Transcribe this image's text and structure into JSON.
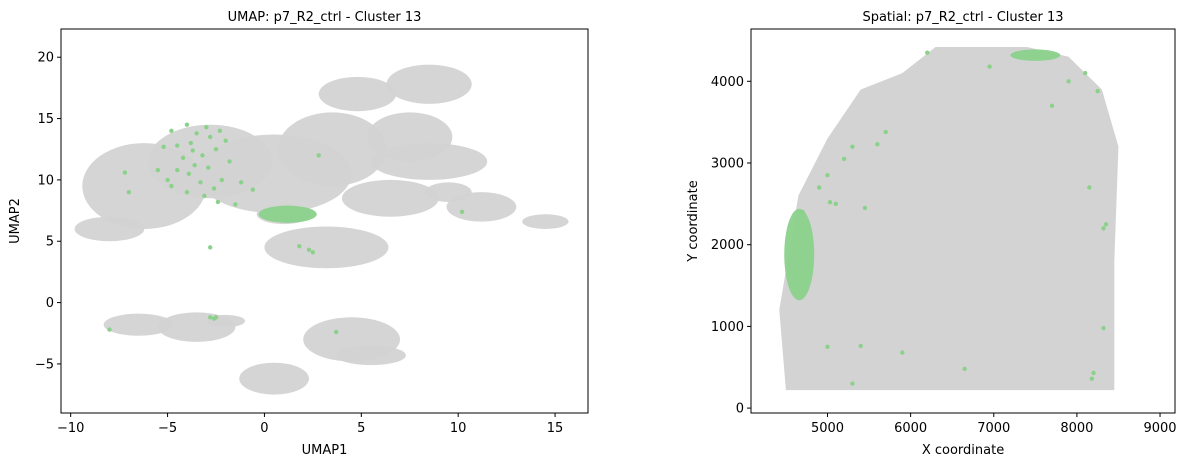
{
  "chart_data": [
    {
      "type": "scatter",
      "title": "UMAP: p7_R2_ctrl - Cluster 13",
      "xlabel": "UMAP1",
      "ylabel": "UMAP2",
      "xlim": [
        -10.5,
        16.7
      ],
      "ylim": [
        -9.0,
        22.3
      ],
      "xticks": [
        -10,
        -5,
        0,
        5,
        10,
        15
      ],
      "yticks": [
        -5,
        0,
        5,
        10,
        15,
        20
      ],
      "grid": false,
      "legend": "none",
      "colors": {
        "background": "#d3d3d3",
        "highlight": "#8bd18b"
      },
      "series": [
        {
          "role": "background",
          "color": "#d3d3d3",
          "regions": [
            {
              "shape": "ellipse",
              "cx": -6.2,
              "cy": 9.5,
              "rx": 3.2,
              "ry": 3.5
            },
            {
              "shape": "ellipse",
              "cx": -8.0,
              "cy": 6.0,
              "rx": 1.8,
              "ry": 1.0
            },
            {
              "shape": "ellipse",
              "cx": -2.8,
              "cy": 11.5,
              "rx": 3.2,
              "ry": 3.0
            },
            {
              "shape": "ellipse",
              "cx": 0.5,
              "cy": 10.5,
              "rx": 4.0,
              "ry": 3.2
            },
            {
              "shape": "ellipse",
              "cx": 3.5,
              "cy": 12.5,
              "rx": 2.8,
              "ry": 3.0
            },
            {
              "shape": "ellipse",
              "cx": 4.8,
              "cy": 17.0,
              "rx": 2.0,
              "ry": 1.4
            },
            {
              "shape": "ellipse",
              "cx": 8.5,
              "cy": 17.8,
              "rx": 2.2,
              "ry": 1.6
            },
            {
              "shape": "ellipse",
              "cx": 7.5,
              "cy": 13.5,
              "rx": 2.2,
              "ry": 2.0
            },
            {
              "shape": "ellipse",
              "cx": 8.5,
              "cy": 11.5,
              "rx": 3.0,
              "ry": 1.5
            },
            {
              "shape": "ellipse",
              "cx": 9.5,
              "cy": 9.0,
              "rx": 1.2,
              "ry": 0.8
            },
            {
              "shape": "ellipse",
              "cx": 11.2,
              "cy": 7.8,
              "rx": 1.8,
              "ry": 1.2
            },
            {
              "shape": "ellipse",
              "cx": 6.5,
              "cy": 8.5,
              "rx": 2.5,
              "ry": 1.5
            },
            {
              "shape": "ellipse",
              "cx": 3.2,
              "cy": 4.5,
              "rx": 3.2,
              "ry": 1.7
            },
            {
              "shape": "ellipse",
              "cx": 1.0,
              "cy": 7.2,
              "rx": 1.4,
              "ry": 0.8
            },
            {
              "shape": "ellipse",
              "cx": 14.5,
              "cy": 6.6,
              "rx": 1.2,
              "ry": 0.6
            },
            {
              "shape": "ellipse",
              "cx": -6.5,
              "cy": -1.8,
              "rx": 1.8,
              "ry": 0.9
            },
            {
              "shape": "ellipse",
              "cx": -3.5,
              "cy": -2.0,
              "rx": 2.0,
              "ry": 1.2
            },
            {
              "shape": "ellipse",
              "cx": -2.0,
              "cy": -1.5,
              "rx": 1.0,
              "ry": 0.5
            },
            {
              "shape": "ellipse",
              "cx": 4.5,
              "cy": -3.0,
              "rx": 2.5,
              "ry": 1.8
            },
            {
              "shape": "ellipse",
              "cx": 5.5,
              "cy": -4.3,
              "rx": 1.8,
              "ry": 0.8
            },
            {
              "shape": "ellipse",
              "cx": 0.5,
              "cy": -6.2,
              "rx": 1.8,
              "ry": 1.3
            }
          ]
        },
        {
          "role": "highlight",
          "name": "Cluster 13",
          "color": "#8bd18b",
          "regions": [
            {
              "shape": "ellipse",
              "cx": 1.2,
              "cy": 7.2,
              "rx": 1.5,
              "ry": 0.7
            }
          ],
          "points": [
            [
              -4.8,
              14.0
            ],
            [
              -4.0,
              14.5
            ],
            [
              -3.5,
              13.8
            ],
            [
              -3.0,
              14.3
            ],
            [
              -2.8,
              13.5
            ],
            [
              -4.5,
              12.8
            ],
            [
              -3.8,
              13.0
            ],
            [
              -2.5,
              12.5
            ],
            [
              -3.2,
              12.0
            ],
            [
              -4.2,
              11.8
            ],
            [
              -5.2,
              12.7
            ],
            [
              -2.0,
              13.2
            ],
            [
              -3.6,
              11.2
            ],
            [
              -2.9,
              11.0
            ],
            [
              -4.5,
              10.8
            ],
            [
              -3.9,
              10.5
            ],
            [
              -5.5,
              10.8
            ],
            [
              -2.2,
              10.0
            ],
            [
              -1.8,
              11.5
            ],
            [
              -3.3,
              9.8
            ],
            [
              -4.8,
              9.5
            ],
            [
              -2.6,
              9.3
            ],
            [
              -4.0,
              9.0
            ],
            [
              -1.2,
              9.8
            ],
            [
              -0.6,
              9.2
            ],
            [
              -3.1,
              8.7
            ],
            [
              -7.0,
              9.0
            ],
            [
              -7.2,
              10.6
            ],
            [
              -2.4,
              8.2
            ],
            [
              -5.0,
              10.0
            ],
            [
              -3.7,
              12.4
            ],
            [
              -2.3,
              14.0
            ],
            [
              2.8,
              12.0
            ],
            [
              10.2,
              7.4
            ],
            [
              -2.8,
              4.5
            ],
            [
              1.8,
              4.6
            ],
            [
              2.3,
              4.3
            ],
            [
              2.5,
              4.1
            ],
            [
              -2.8,
              -1.2
            ],
            [
              -2.6,
              -1.3
            ],
            [
              -2.5,
              -1.2
            ],
            [
              -8.0,
              -2.2
            ],
            [
              3.7,
              -2.4
            ],
            [
              -1.5,
              8.0
            ]
          ]
        }
      ]
    },
    {
      "type": "scatter",
      "title": "Spatial: p7_R2_ctrl - Cluster 13",
      "xlabel": "X coordinate",
      "ylabel": "Y coordinate",
      "xlim": [
        4080,
        9180
      ],
      "ylim": [
        -60,
        4640
      ],
      "xticks": [
        5000,
        6000,
        7000,
        8000,
        9000
      ],
      "yticks": [
        0,
        1000,
        2000,
        3000,
        4000
      ],
      "grid": false,
      "legend": "none",
      "colors": {
        "background": "#d3d3d3",
        "highlight": "#8bd18b"
      },
      "series": [
        {
          "role": "background",
          "color": "#d3d3d3",
          "regions": [
            {
              "shape": "polygon",
              "points": [
                [
                  4500,
                  220
                ],
                [
                  8450,
                  220
                ],
                [
                  8450,
                  1800
                ],
                [
                  8500,
                  3200
                ],
                [
                  8300,
                  3900
                ],
                [
                  7900,
                  4300
                ],
                [
                  7400,
                  4420
                ],
                [
                  6300,
                  4420
                ],
                [
                  5900,
                  4100
                ],
                [
                  5400,
                  3900
                ],
                [
                  5000,
                  3300
                ],
                [
                  4650,
                  2600
                ],
                [
                  4420,
                  1200
                ]
              ]
            }
          ]
        },
        {
          "role": "highlight",
          "name": "Cluster 13",
          "color": "#8bd18b",
          "regions": [
            {
              "shape": "ellipse",
              "cx": 4660,
              "cy": 1880,
              "rx": 180,
              "ry": 560
            },
            {
              "shape": "ellipse",
              "cx": 7500,
              "cy": 4320,
              "rx": 300,
              "ry": 70
            }
          ],
          "points": [
            [
              4900,
              2700
            ],
            [
              5000,
              2850
            ],
            [
              5100,
              2500
            ],
            [
              5300,
              3200
            ],
            [
              5200,
              3050
            ],
            [
              5600,
              3230
            ],
            [
              5700,
              3380
            ],
            [
              5450,
              2450
            ],
            [
              6200,
              4350
            ],
            [
              6950,
              4180
            ],
            [
              7700,
              3700
            ],
            [
              7900,
              4000
            ],
            [
              8100,
              4100
            ],
            [
              8250,
              3880
            ],
            [
              8150,
              2700
            ],
            [
              8350,
              2250
            ],
            [
              8320,
              2200
            ],
            [
              4700,
              2400
            ],
            [
              5000,
              750
            ],
            [
              5400,
              760
            ],
            [
              5900,
              680
            ],
            [
              5300,
              300
            ],
            [
              6650,
              480
            ],
            [
              8200,
              430
            ],
            [
              8180,
              360
            ],
            [
              8320,
              980
            ],
            [
              5030,
              2520
            ]
          ]
        }
      ]
    }
  ]
}
